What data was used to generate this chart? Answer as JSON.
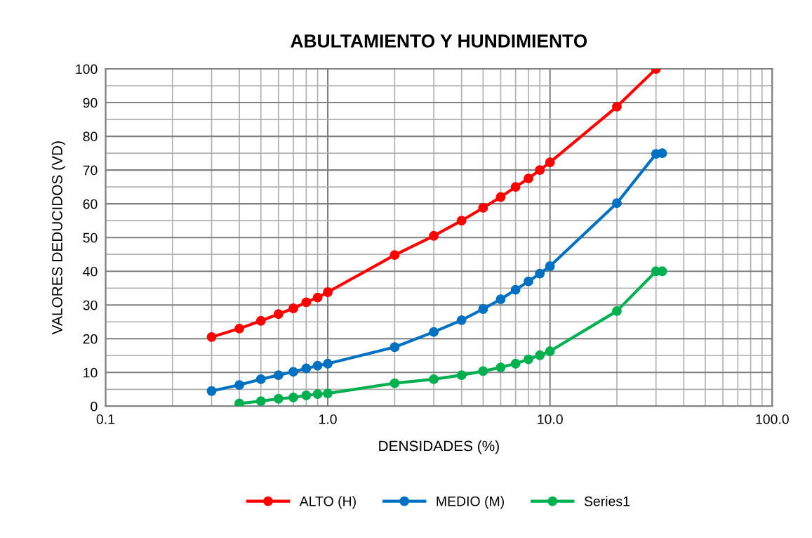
{
  "chart_data": {
    "type": "line",
    "title": "ABULTAMIENTO Y HUNDIMIENTO",
    "xlabel": "DENSIDADES (%)",
    "ylabel": "VALORES DEDUCIDOS (VD)",
    "log": "x",
    "grid": true,
    "legend": "bottom",
    "marker": "circle",
    "line_style": "solid",
    "xlim": [
      0.1,
      100
    ],
    "xticks": [
      {
        "value": 0.1,
        "label": "0.1"
      },
      {
        "value": 1,
        "label": "1.0"
      },
      {
        "value": 10,
        "label": "10.0"
      },
      {
        "value": 100,
        "label": "100.0"
      }
    ],
    "ylim": [
      0,
      100
    ],
    "yticks": [
      0,
      10,
      20,
      30,
      40,
      50,
      60,
      70,
      80,
      90,
      100
    ],
    "series": [
      {
        "name": "ALTO (H)",
        "color": "#ff0000",
        "x": [
          0.3,
          0.4,
          0.5,
          0.6,
          0.7,
          0.8,
          0.9,
          1,
          2,
          3,
          4,
          5,
          6,
          7,
          8,
          9,
          10,
          20,
          30
        ],
        "values": [
          20.5,
          23,
          25.3,
          27.3,
          29,
          30.8,
          32.2,
          33.8,
          44.8,
          50.5,
          55,
          58.8,
          62,
          65,
          67.5,
          70,
          72.3,
          88.8,
          100
        ]
      },
      {
        "name": "MEDIO (M)",
        "color": "#0070c0",
        "x": [
          0.3,
          0.4,
          0.5,
          0.6,
          0.7,
          0.8,
          0.9,
          1,
          2,
          3,
          4,
          5,
          6,
          7,
          8,
          9,
          10,
          20,
          30,
          32
        ],
        "values": [
          4.5,
          6.3,
          8,
          9.2,
          10.2,
          11.2,
          12,
          12.6,
          17.5,
          22,
          25.5,
          28.8,
          31.7,
          34.5,
          37,
          39.3,
          41.5,
          60.2,
          74.8,
          75
        ]
      },
      {
        "name": "Series1",
        "color": "#00b050",
        "x": [
          0.4,
          0.5,
          0.6,
          0.7,
          0.8,
          0.9,
          1,
          2,
          3,
          4,
          5,
          6,
          7,
          8,
          9,
          10,
          20,
          30,
          32
        ],
        "values": [
          0.8,
          1.5,
          2.2,
          2.6,
          3.2,
          3.6,
          3.8,
          6.8,
          8,
          9.2,
          10.4,
          11.5,
          12.6,
          13.9,
          15.1,
          16.3,
          28.2,
          40,
          40
        ]
      }
    ]
  }
}
